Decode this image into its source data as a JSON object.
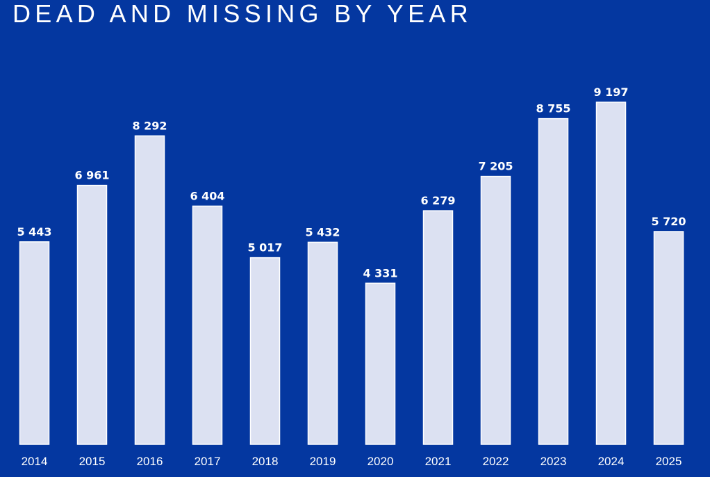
{
  "title": "DEAD AND MISSING BY YEAR",
  "colors": {
    "background": "#0437A0",
    "bar_fill": "#DCE1F2",
    "bar_stroke": "#FFFFFF",
    "text": "#FFFFFF"
  },
  "chart_data": {
    "type": "bar",
    "title": "DEAD AND MISSING BY YEAR",
    "xlabel": "",
    "ylabel": "",
    "categories": [
      "2014",
      "2015",
      "2016",
      "2017",
      "2018",
      "2019",
      "2020",
      "2021",
      "2022",
      "2023",
      "2024",
      "2025"
    ],
    "values": [
      5443,
      6961,
      8292,
      6404,
      5017,
      5432,
      4331,
      6279,
      7205,
      8755,
      9197,
      5720
    ],
    "value_labels": [
      "5 443",
      "6 961",
      "8 292",
      "6 404",
      "5 017",
      "5 432",
      "4 331",
      "6 279",
      "7 205",
      "8 755",
      "9 197",
      "5 720"
    ],
    "ylim": [
      0,
      9197
    ],
    "grid": false,
    "legend": "none"
  }
}
